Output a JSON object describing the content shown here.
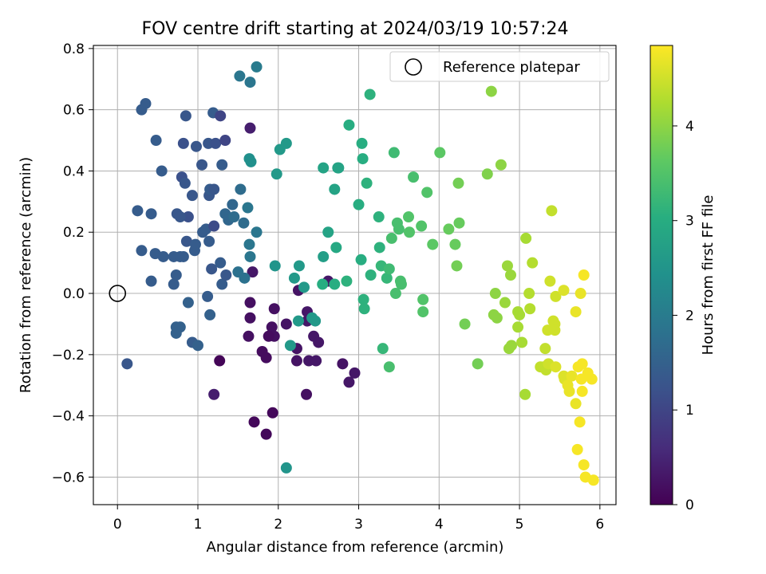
{
  "chart_data": {
    "type": "scatter",
    "title": "FOV centre drift starting at 2024/03/19 10:57:24",
    "xlabel": "Angular distance from reference (arcmin)",
    "ylabel": "Rotation from reference (arcmin)",
    "xlim": [
      -0.3,
      6.2
    ],
    "ylim": [
      -0.69,
      0.81
    ],
    "xticks": [
      0,
      1,
      2,
      3,
      4,
      5,
      6
    ],
    "xtick_labels": [
      "0",
      "1",
      "2",
      "3",
      "4",
      "5",
      "6"
    ],
    "yticks": [
      -0.6,
      -0.4,
      -0.2,
      0.0,
      0.2,
      0.4,
      0.6,
      0.8
    ],
    "ytick_labels": [
      "−0.6",
      "−0.4",
      "−0.2",
      "0.0",
      "0.2",
      "0.4",
      "0.6",
      "0.8"
    ],
    "grid": true,
    "legend": {
      "position": "top-right",
      "entries": [
        "Reference platepar"
      ]
    },
    "reference_point": {
      "x": 0,
      "y": 0
    },
    "colorbar": {
      "label": "Hours from first FF file",
      "colormap": "viridis",
      "range": [
        0,
        4.85
      ],
      "ticks": [
        0,
        1,
        2,
        3,
        4
      ],
      "tick_labels": [
        "0",
        "1",
        "2",
        "3",
        "4"
      ]
    },
    "points": [
      [
        1.27,
        -0.22,
        0.05
      ],
      [
        1.7,
        -0.42,
        0.1
      ],
      [
        1.85,
        -0.46,
        0.1
      ],
      [
        1.93,
        -0.39,
        0.1
      ],
      [
        1.8,
        -0.19,
        0.15
      ],
      [
        1.85,
        -0.21,
        0.15
      ],
      [
        1.65,
        -0.08,
        0.2
      ],
      [
        1.65,
        -0.03,
        0.2
      ],
      [
        1.63,
        -0.14,
        0.2
      ],
      [
        1.95,
        -0.05,
        0.2
      ],
      [
        1.92,
        -0.11,
        0.2
      ],
      [
        1.95,
        -0.14,
        0.2
      ],
      [
        1.88,
        -0.14,
        0.15
      ],
      [
        2.1,
        -0.1,
        0.25
      ],
      [
        2.23,
        -0.18,
        0.25
      ],
      [
        2.23,
        -0.22,
        0.25
      ],
      [
        2.25,
        0.01,
        0.25
      ],
      [
        2.35,
        -0.33,
        0.2
      ],
      [
        2.36,
        -0.06,
        0.3
      ],
      [
        2.36,
        -0.09,
        0.3
      ],
      [
        2.38,
        -0.22,
        0.3
      ],
      [
        2.44,
        -0.14,
        0.3
      ],
      [
        2.47,
        -0.22,
        0.3
      ],
      [
        2.5,
        -0.16,
        0.3
      ],
      [
        2.62,
        0.04,
        0.3
      ],
      [
        2.8,
        -0.23,
        0.25
      ],
      [
        2.88,
        -0.29,
        0.3
      ],
      [
        2.95,
        -0.26,
        0.3
      ],
      [
        1.68,
        0.07,
        0.3
      ],
      [
        1.65,
        0.54,
        0.4
      ],
      [
        1.2,
        -0.33,
        0.4
      ],
      [
        0.3,
        0.6,
        1.4
      ],
      [
        0.35,
        0.62,
        1.4
      ],
      [
        0.48,
        0.5,
        1.4
      ],
      [
        0.55,
        0.4,
        1.4
      ],
      [
        0.25,
        0.27,
        1.4
      ],
      [
        0.42,
        0.26,
        1.4
      ],
      [
        0.3,
        0.14,
        1.4
      ],
      [
        0.47,
        0.13,
        1.4
      ],
      [
        0.57,
        0.12,
        1.4
      ],
      [
        0.7,
        0.12,
        1.4
      ],
      [
        0.78,
        0.12,
        1.4
      ],
      [
        0.82,
        0.12,
        1.4
      ],
      [
        0.12,
        -0.23,
        1.3
      ],
      [
        0.42,
        0.04,
        1.4
      ],
      [
        0.7,
        0.03,
        1.4
      ],
      [
        0.73,
        0.06,
        1.4
      ],
      [
        0.73,
        -0.11,
        1.5
      ],
      [
        0.78,
        -0.11,
        1.5
      ],
      [
        0.73,
        -0.13,
        1.5
      ],
      [
        0.88,
        -0.03,
        1.5
      ],
      [
        0.93,
        -0.16,
        1.4
      ],
      [
        1.0,
        -0.17,
        1.5
      ],
      [
        1.12,
        -0.01,
        1.4
      ],
      [
        1.15,
        -0.07,
        1.5
      ],
      [
        0.82,
        0.49,
        1.2
      ],
      [
        0.85,
        0.58,
        1.3
      ],
      [
        0.98,
        0.48,
        1.3
      ],
      [
        1.05,
        0.42,
        1.3
      ],
      [
        1.13,
        0.49,
        1.3
      ],
      [
        1.19,
        0.59,
        1.4
      ],
      [
        1.22,
        0.49,
        1.2
      ],
      [
        1.28,
        0.58,
        1.0
      ],
      [
        1.34,
        0.5,
        1.0
      ],
      [
        0.8,
        0.38,
        1.2
      ],
      [
        0.84,
        0.36,
        1.3
      ],
      [
        0.88,
        0.25,
        1.2
      ],
      [
        0.93,
        0.32,
        1.3
      ],
      [
        0.74,
        0.26,
        1.3
      ],
      [
        0.78,
        0.25,
        1.3
      ],
      [
        0.86,
        0.17,
        1.3
      ],
      [
        0.96,
        0.14,
        1.4
      ],
      [
        0.97,
        0.16,
        1.4
      ],
      [
        1.06,
        0.2,
        1.4
      ],
      [
        1.1,
        0.21,
        1.4
      ],
      [
        1.14,
        0.17,
        1.4
      ],
      [
        1.14,
        0.32,
        1.3
      ],
      [
        1.15,
        0.34,
        1.4
      ],
      [
        1.2,
        0.34,
        1.3
      ],
      [
        1.2,
        0.22,
        1.1
      ],
      [
        1.17,
        0.08,
        1.3
      ],
      [
        1.28,
        0.1,
        1.4
      ],
      [
        1.3,
        0.03,
        1.4
      ],
      [
        1.35,
        0.06,
        1.3
      ],
      [
        1.3,
        0.42,
        1.4
      ],
      [
        1.34,
        0.26,
        1.6
      ],
      [
        1.38,
        0.24,
        1.6
      ],
      [
        1.43,
        0.29,
        1.6
      ],
      [
        1.45,
        0.25,
        1.7
      ],
      [
        1.53,
        0.34,
        1.7
      ],
      [
        1.57,
        0.23,
        1.7
      ],
      [
        1.5,
        0.07,
        1.8
      ],
      [
        1.58,
        0.05,
        1.8
      ],
      [
        1.65,
        0.12,
        1.9
      ],
      [
        1.64,
        0.16,
        1.9
      ],
      [
        1.62,
        0.28,
        1.9
      ],
      [
        1.73,
        0.2,
        1.9
      ],
      [
        1.52,
        0.71,
        1.9
      ],
      [
        1.65,
        0.69,
        1.9
      ],
      [
        1.73,
        0.74,
        2.0
      ],
      [
        1.64,
        0.44,
        2.4
      ],
      [
        1.66,
        0.43,
        2.4
      ],
      [
        1.98,
        0.39,
        2.6
      ],
      [
        2.02,
        0.47,
        2.6
      ],
      [
        2.1,
        0.49,
        2.6
      ],
      [
        1.96,
        0.09,
        2.5
      ],
      [
        2.1,
        -0.57,
        2.5
      ],
      [
        2.15,
        -0.17,
        2.6
      ],
      [
        2.2,
        0.05,
        2.6
      ],
      [
        2.25,
        -0.09,
        2.6
      ],
      [
        2.26,
        0.09,
        2.6
      ],
      [
        2.32,
        0.02,
        2.6
      ],
      [
        2.42,
        -0.08,
        2.6
      ],
      [
        2.46,
        -0.09,
        2.6
      ],
      [
        2.56,
        0.12,
        2.7
      ],
      [
        2.56,
        0.41,
        2.8
      ],
      [
        2.62,
        0.2,
        2.8
      ],
      [
        2.7,
        0.34,
        2.8
      ],
      [
        2.74,
        0.41,
        2.8
      ],
      [
        2.75,
        0.41,
        2.8
      ],
      [
        2.72,
        0.15,
        2.9
      ],
      [
        2.7,
        0.03,
        3.0
      ],
      [
        2.55,
        0.03,
        3.0
      ],
      [
        2.85,
        0.04,
        3.1
      ],
      [
        2.88,
        0.55,
        3.0
      ],
      [
        3.0,
        0.29,
        3.0
      ],
      [
        3.03,
        0.11,
        3.0
      ],
      [
        3.04,
        0.49,
        3.0
      ],
      [
        3.05,
        0.44,
        3.0
      ],
      [
        3.06,
        -0.02,
        3.1
      ],
      [
        3.07,
        -0.05,
        3.1
      ],
      [
        3.1,
        0.36,
        3.1
      ],
      [
        3.14,
        0.65,
        3.1
      ],
      [
        3.15,
        0.06,
        3.1
      ],
      [
        3.25,
        0.25,
        3.1
      ],
      [
        3.26,
        0.15,
        3.1
      ],
      [
        3.28,
        0.09,
        3.2
      ],
      [
        3.3,
        -0.18,
        3.2
      ],
      [
        3.35,
        0.05,
        3.2
      ],
      [
        3.38,
        0.08,
        3.3
      ],
      [
        3.38,
        -0.24,
        3.4
      ],
      [
        3.41,
        0.18,
        3.4
      ],
      [
        3.44,
        0.46,
        3.3
      ],
      [
        3.46,
        0.0,
        3.4
      ],
      [
        3.48,
        0.23,
        3.4
      ],
      [
        3.5,
        0.21,
        3.4
      ],
      [
        3.52,
        0.04,
        3.4
      ],
      [
        3.53,
        0.03,
        3.4
      ],
      [
        3.62,
        0.25,
        3.5
      ],
      [
        3.63,
        0.2,
        3.5
      ],
      [
        3.68,
        0.38,
        3.4
      ],
      [
        3.78,
        0.22,
        3.5
      ],
      [
        3.8,
        -0.02,
        3.5
      ],
      [
        3.8,
        -0.06,
        3.5
      ],
      [
        3.85,
        0.33,
        3.5
      ],
      [
        3.92,
        0.16,
        3.6
      ],
      [
        4.01,
        0.46,
        3.6
      ],
      [
        4.12,
        0.21,
        3.7
      ],
      [
        4.2,
        0.16,
        3.7
      ],
      [
        4.22,
        0.09,
        3.8
      ],
      [
        4.25,
        0.23,
        3.7
      ],
      [
        4.24,
        0.36,
        3.8
      ],
      [
        4.32,
        -0.1,
        3.8
      ],
      [
        4.48,
        -0.23,
        3.8
      ],
      [
        4.6,
        0.39,
        3.9
      ],
      [
        4.65,
        0.66,
        4.0
      ],
      [
        4.68,
        -0.07,
        4.0
      ],
      [
        4.7,
        0.0,
        4.0
      ],
      [
        4.72,
        -0.08,
        4.0
      ],
      [
        4.77,
        0.42,
        4.0
      ],
      [
        4.82,
        -0.03,
        4.1
      ],
      [
        4.85,
        0.09,
        4.1
      ],
      [
        4.87,
        -0.18,
        4.1
      ],
      [
        4.89,
        0.06,
        4.1
      ],
      [
        4.9,
        -0.17,
        4.1
      ],
      [
        4.98,
        -0.06,
        4.2
      ],
      [
        4.98,
        -0.11,
        4.2
      ],
      [
        5.0,
        -0.07,
        4.2
      ],
      [
        5.03,
        -0.16,
        4.2
      ],
      [
        5.07,
        -0.33,
        4.2
      ],
      [
        5.08,
        0.18,
        4.2
      ],
      [
        5.12,
        0.0,
        4.3
      ],
      [
        5.13,
        -0.05,
        4.3
      ],
      [
        5.16,
        0.1,
        4.3
      ],
      [
        5.26,
        -0.24,
        4.4
      ],
      [
        5.3,
        -0.24,
        4.4
      ],
      [
        5.32,
        -0.18,
        4.4
      ],
      [
        5.33,
        -0.25,
        4.4
      ],
      [
        5.35,
        -0.12,
        4.5
      ],
      [
        5.36,
        -0.23,
        4.5
      ],
      [
        5.38,
        0.04,
        4.5
      ],
      [
        5.4,
        0.27,
        4.4
      ],
      [
        5.42,
        -0.09,
        4.5
      ],
      [
        5.44,
        -0.1,
        4.5
      ],
      [
        5.44,
        -0.12,
        4.5
      ],
      [
        5.45,
        -0.01,
        4.5
      ],
      [
        5.45,
        -0.24,
        4.6
      ],
      [
        5.55,
        0.01,
        4.6
      ],
      [
        5.55,
        -0.27,
        4.6
      ],
      [
        5.56,
        -0.28,
        4.6
      ],
      [
        5.6,
        -0.3,
        4.7
      ],
      [
        5.62,
        -0.32,
        4.7
      ],
      [
        5.65,
        -0.27,
        4.7
      ],
      [
        5.7,
        -0.36,
        4.7
      ],
      [
        5.72,
        -0.51,
        4.8
      ],
      [
        5.7,
        -0.06,
        4.7
      ],
      [
        5.73,
        -0.24,
        4.8
      ],
      [
        5.75,
        -0.42,
        4.8
      ],
      [
        5.76,
        -0.0,
        4.7
      ],
      [
        5.77,
        -0.28,
        4.8
      ],
      [
        5.78,
        -0.23,
        4.8
      ],
      [
        5.78,
        -0.32,
        4.8
      ],
      [
        5.8,
        -0.56,
        4.8
      ],
      [
        5.8,
        0.06,
        4.8
      ],
      [
        5.82,
        -0.6,
        4.8
      ],
      [
        5.85,
        -0.26,
        4.8
      ],
      [
        5.9,
        -0.28,
        4.8
      ],
      [
        5.92,
        -0.61,
        4.8
      ]
    ]
  }
}
